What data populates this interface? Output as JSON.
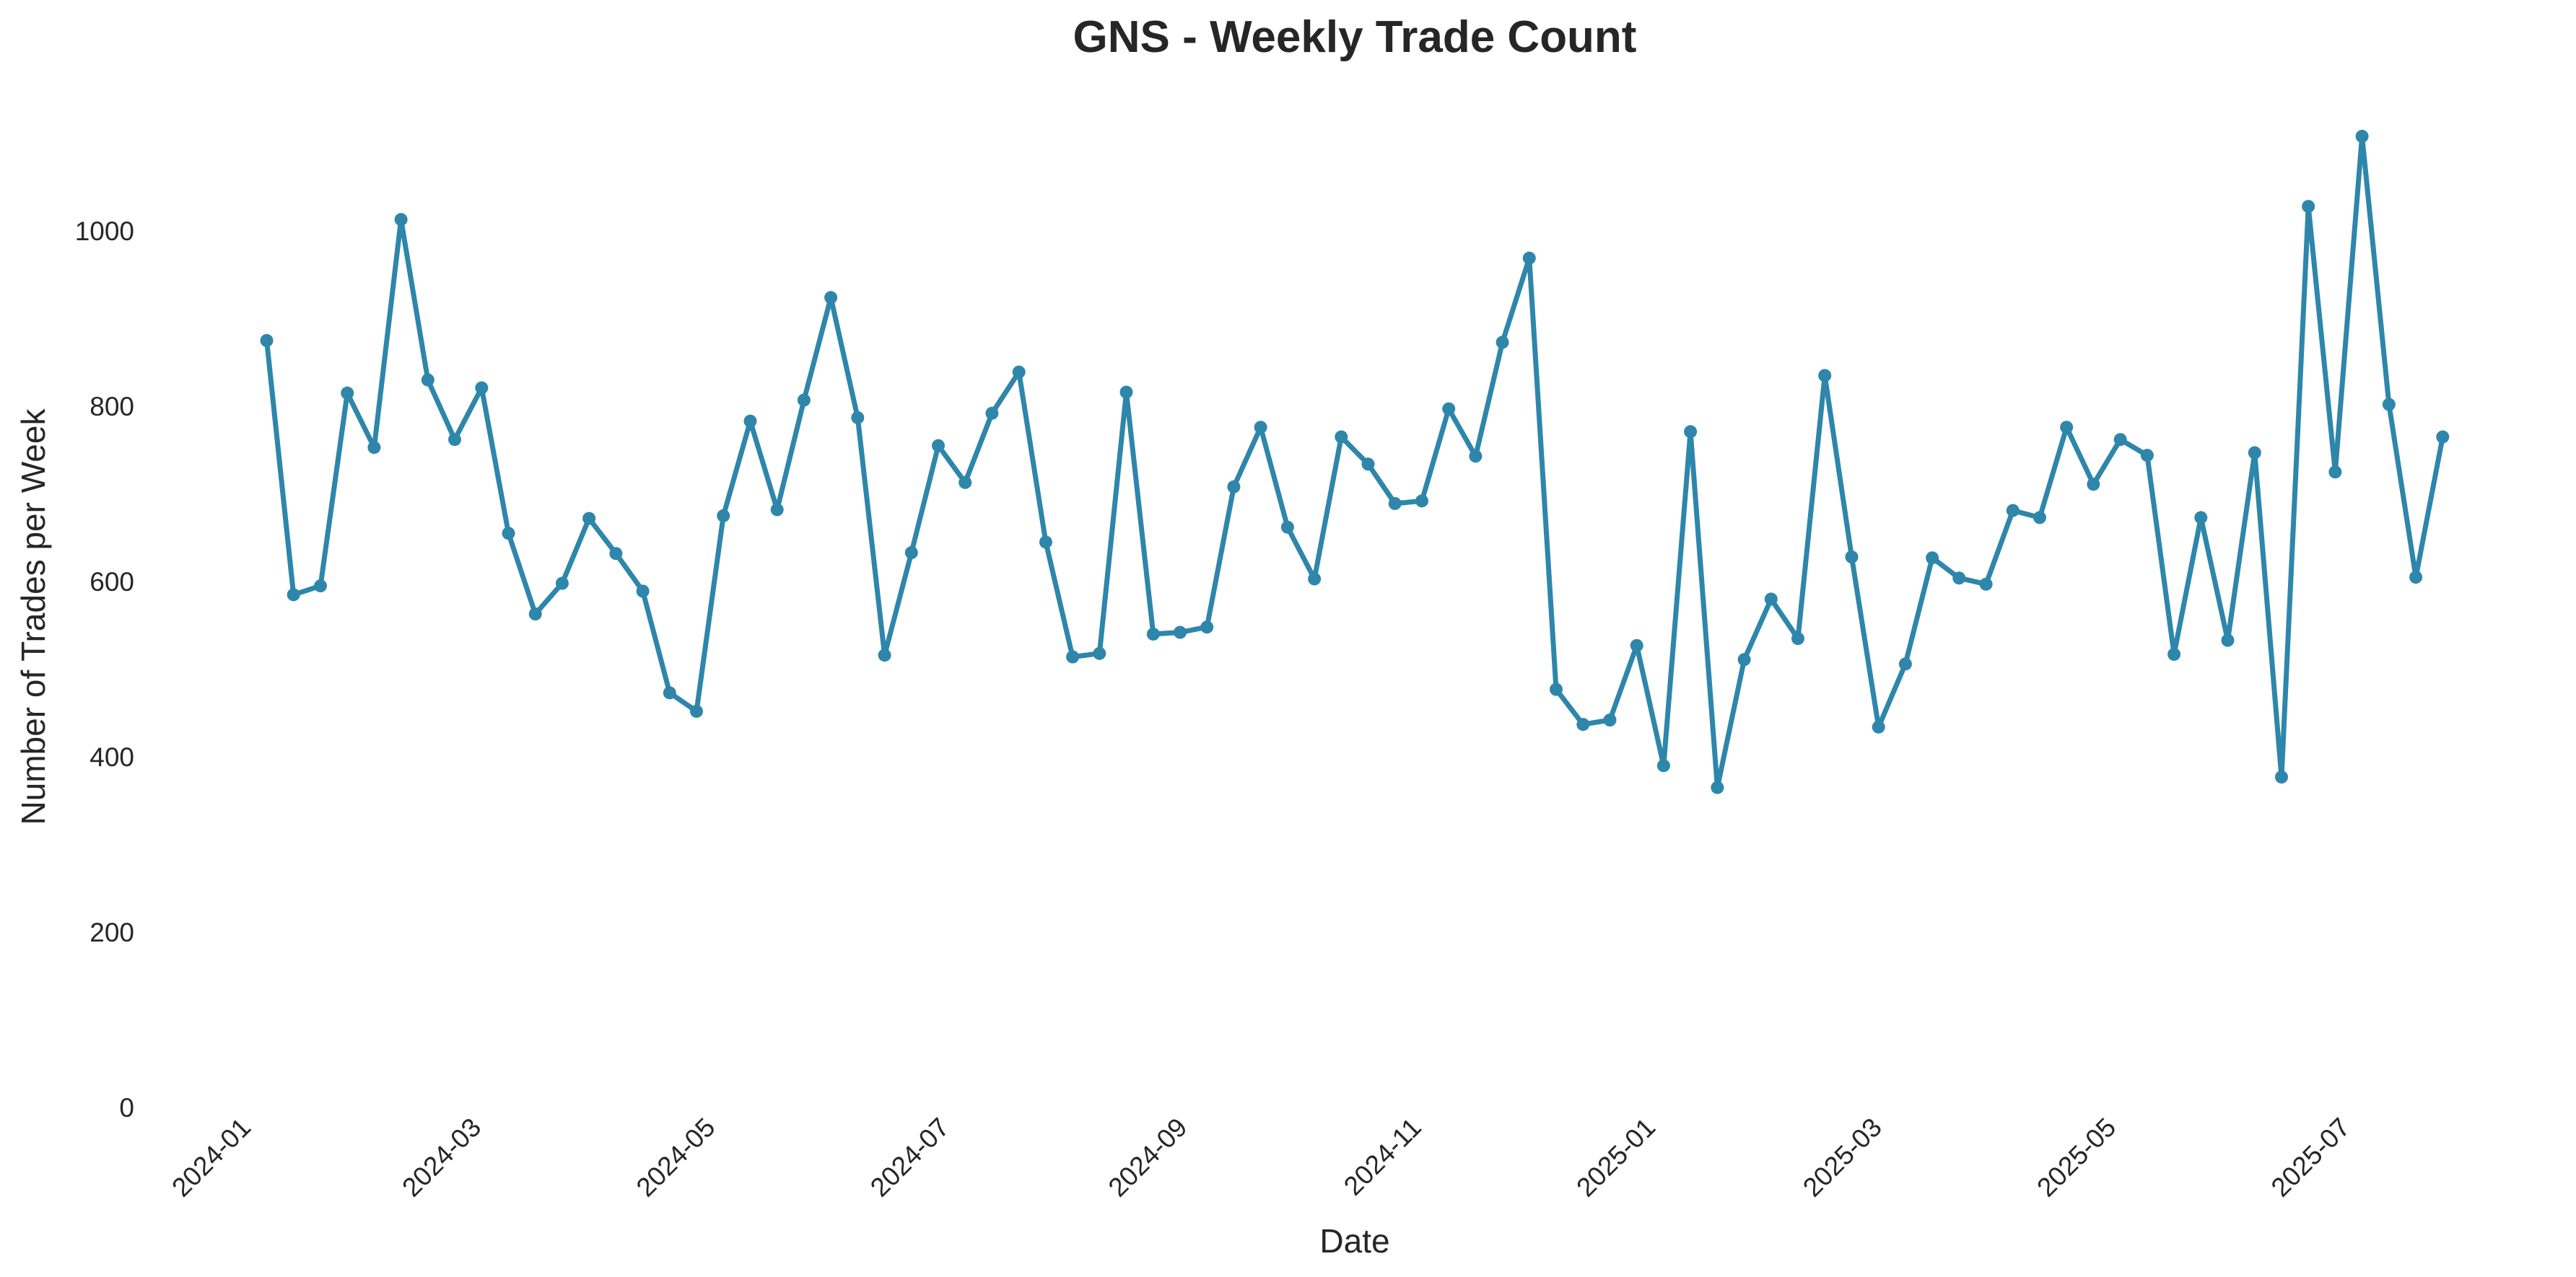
{
  "chart_data": {
    "type": "line",
    "title": "GNS - Weekly Trade Count",
    "xlabel": "Date",
    "ylabel": "Number of Trades per Week",
    "ylim": [
      0,
      1140
    ],
    "yticks": [
      "0",
      "200",
      "400",
      "600",
      "800",
      "1000"
    ],
    "ytick_values": [
      0,
      200,
      400,
      600,
      800,
      1000
    ],
    "xticks": [
      "2024-01",
      "2024-03",
      "2024-05",
      "2024-07",
      "2024-09",
      "2024-11",
      "2025-01",
      "2025-03",
      "2025-05",
      "2025-07"
    ],
    "xtick_dates": [
      "2024-01-01",
      "2024-03-01",
      "2024-05-01",
      "2024-07-01",
      "2024-09-01",
      "2024-11-01",
      "2025-01-01",
      "2025-03-01",
      "2025-05-01",
      "2025-07-01"
    ],
    "xlim": [
      "2023-12-08",
      "2025-08-14"
    ],
    "grid": false,
    "legend": "none",
    "line_color": "#2e86ab",
    "series": [
      {
        "x": [
          "2024-01-07",
          "2024-01-14",
          "2024-01-21",
          "2024-01-28",
          "2024-02-04",
          "2024-02-11",
          "2024-02-18",
          "2024-02-25",
          "2024-03-03",
          "2024-03-10",
          "2024-03-17",
          "2024-03-24",
          "2024-03-31",
          "2024-04-07",
          "2024-04-14",
          "2024-04-21",
          "2024-04-28",
          "2024-05-05",
          "2024-05-12",
          "2024-05-19",
          "2024-05-26",
          "2024-06-02",
          "2024-06-09",
          "2024-06-16",
          "2024-06-23",
          "2024-06-30",
          "2024-07-07",
          "2024-07-14",
          "2024-07-21",
          "2024-07-28",
          "2024-08-04",
          "2024-08-11",
          "2024-08-18",
          "2024-08-25",
          "2024-09-01",
          "2024-09-08",
          "2024-09-15",
          "2024-09-22",
          "2024-09-29",
          "2024-10-06",
          "2024-10-13",
          "2024-10-20",
          "2024-10-27",
          "2024-11-03",
          "2024-11-10",
          "2024-11-17",
          "2024-11-24",
          "2024-12-01",
          "2024-12-08",
          "2024-12-15",
          "2024-12-22",
          "2024-12-29",
          "2025-01-05",
          "2025-01-12",
          "2025-01-19",
          "2025-01-26",
          "2025-02-02",
          "2025-02-09",
          "2025-02-16",
          "2025-02-23",
          "2025-03-02",
          "2025-03-09",
          "2025-03-16",
          "2025-03-23",
          "2025-03-30",
          "2025-04-06",
          "2025-04-13",
          "2025-04-20",
          "2025-04-27",
          "2025-05-04",
          "2025-05-11",
          "2025-05-18",
          "2025-05-25",
          "2025-06-01",
          "2025-06-08",
          "2025-06-15",
          "2025-06-22",
          "2025-06-29",
          "2025-07-06",
          "2025-07-13",
          "2025-07-20",
          "2025-07-27"
        ],
        "values": [
          875,
          585,
          595,
          815,
          753,
          1013,
          830,
          762,
          821,
          655,
          563,
          598,
          672,
          632,
          589,
          473,
          452,
          675,
          783,
          682,
          807,
          924,
          787,
          516,
          633,
          755,
          713,
          792,
          839,
          645,
          514,
          518,
          816,
          540,
          542,
          548,
          708,
          776,
          662,
          603,
          765,
          734,
          689,
          692,
          797,
          743,
          873,
          969,
          477,
          437,
          442,
          527,
          390,
          771,
          365,
          511,
          580,
          535,
          835,
          628,
          434,
          506,
          627,
          604,
          597,
          681,
          673,
          776,
          711,
          762,
          744,
          517,
          673,
          533,
          747,
          377,
          1028,
          725,
          1108,
          802,
          605,
          765
        ]
      }
    ]
  }
}
